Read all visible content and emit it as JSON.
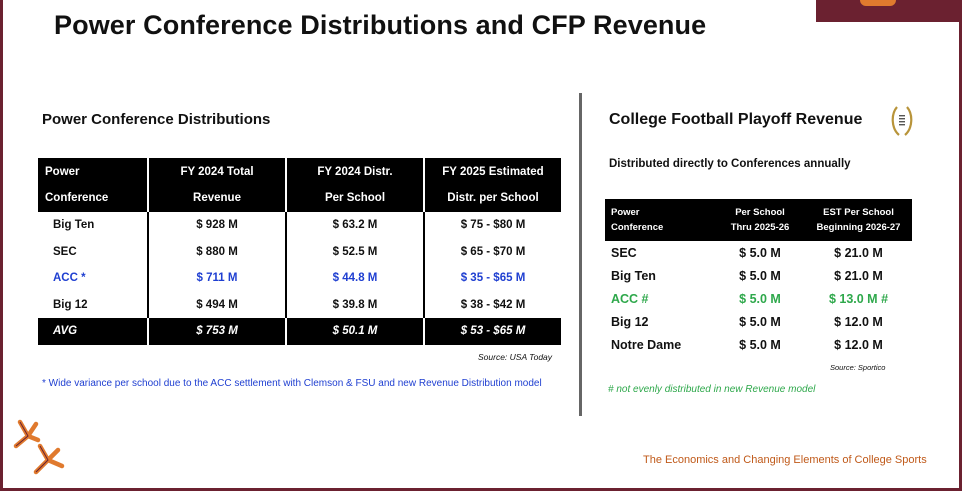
{
  "page": {
    "title": "Power Conference Distributions and CFP Revenue",
    "footer_caption": "The Economics and Changing Elements of College Sports"
  },
  "left_panel": {
    "heading": "Power Conference Distributions",
    "table": {
      "headers": [
        [
          "Power",
          "Conference"
        ],
        [
          "FY 2024 Total",
          "Revenue"
        ],
        [
          "FY 2024 Distr.",
          "Per School"
        ],
        [
          "FY 2025 Estimated",
          "Distr. per School"
        ]
      ],
      "rows": [
        [
          "Big Ten",
          "$ 928 M",
          "$ 63.2 M",
          "$ 75 - $80 M"
        ],
        [
          "SEC",
          "$ 880 M",
          "$ 52.5 M",
          "$ 65 - $70 M"
        ],
        [
          "ACC *",
          "$ 711 M",
          "$ 44.8 M",
          "$ 35 - $65 M"
        ],
        [
          "Big 12",
          "$ 494 M",
          "$ 39.8 M",
          "$ 38 - $42 M"
        ]
      ],
      "avg_row": [
        "AVG",
        "$ 753 M",
        "$ 50.1 M",
        "$ 53 - $65 M"
      ]
    },
    "source": "Source: USA Today",
    "footnote": "* Wide variance per school due to the ACC settlement with Clemson & FSU and new Revenue Distribution model"
  },
  "right_panel": {
    "heading": "College Football Playoff Revenue",
    "subheading": "Distributed directly to Conferences annually",
    "table": {
      "headers": [
        [
          "Power",
          "Conference"
        ],
        [
          "Per School",
          "Thru 2025-26"
        ],
        [
          "EST Per School",
          "Beginning 2026-27"
        ]
      ],
      "rows": [
        [
          "SEC",
          "$ 5.0 M",
          "$ 21.0 M"
        ],
        [
          "Big Ten",
          "$ 5.0 M",
          "$ 21.0 M"
        ],
        [
          "ACC #",
          "$ 5.0 M",
          "$ 13.0 M #"
        ],
        [
          "Big 12",
          "$ 5.0 M",
          "$ 12.0 M"
        ],
        [
          "Notre Dame",
          "$ 5.0 M",
          "$ 12.0 M"
        ]
      ]
    },
    "source": "Source: Sportico",
    "footnote": "# not evenly distributed in new Revenue model"
  },
  "colors": {
    "frame": "#6b2130",
    "highlight_blue": "#1f3fd1",
    "highlight_green": "#2ea84b",
    "caption_orange": "#c05a1a"
  },
  "icons": [
    "cfp-trophy-icon",
    "hokie-feet-logo"
  ]
}
